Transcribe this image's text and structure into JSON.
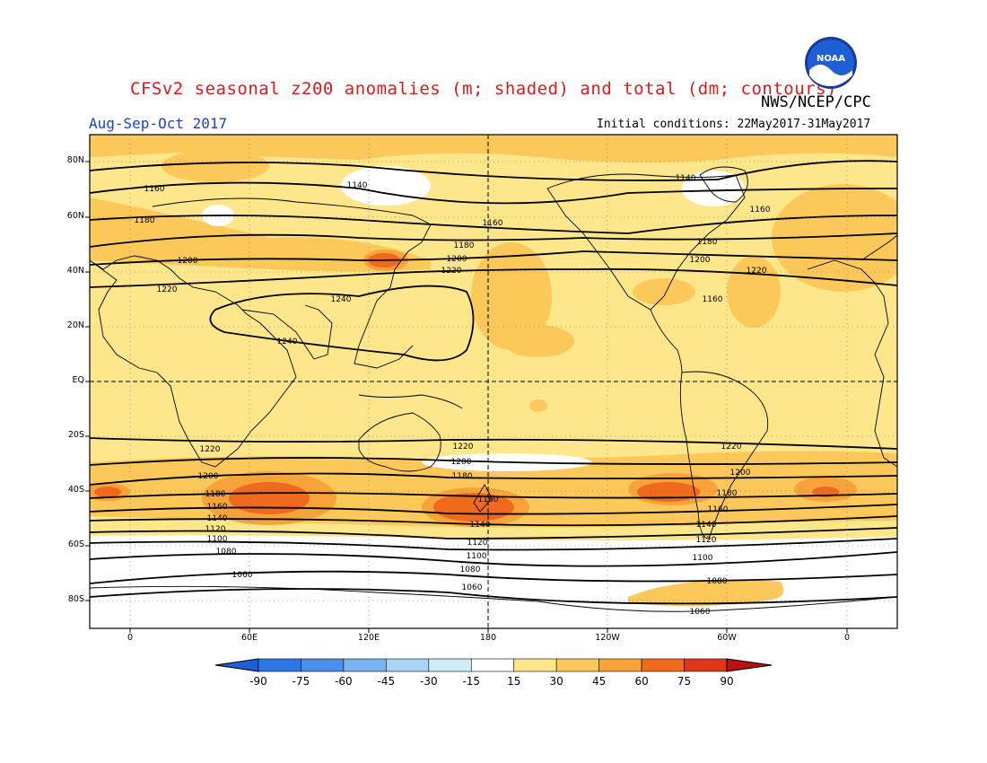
{
  "header": {
    "title": "CFSv2 seasonal z200 anomalies (m; shaded) and total (dm; contours)",
    "agency": "NWS/NCEP/CPC",
    "season": "Aug-Sep-Oct 2017",
    "initial_conditions": "Initial conditions: 22May2017-31May2017",
    "logo_text": "NOAA"
  },
  "axes": {
    "lat_labels": [
      "80N",
      "60N",
      "40N",
      "20N",
      "EQ",
      "20S",
      "40S",
      "60S",
      "80S"
    ],
    "lon_labels": [
      "0",
      "60E",
      "120E",
      "180",
      "120W",
      "60W",
      "0"
    ]
  },
  "colorbar": {
    "ticks": [
      "-90",
      "-75",
      "-60",
      "-45",
      "-30",
      "-15",
      "15",
      "30",
      "45",
      "60",
      "75",
      "90"
    ],
    "colors": [
      "#1e5fd8",
      "#2b78e4",
      "#4a90e8",
      "#78b4f0",
      "#a8d4f5",
      "#cdeef6",
      "#ffffff",
      "#fee68a",
      "#fdc85a",
      "#f7a33a",
      "#ef6a1c",
      "#e2361a",
      "#b91212"
    ]
  },
  "contour_labels": [
    "1140",
    "1160",
    "1180",
    "1200",
    "1220",
    "1240",
    "1240",
    "1140",
    "1160",
    "1180",
    "1200",
    "1220",
    "1160",
    "1180",
    "1200",
    "1220",
    "1160",
    "1220",
    "1200",
    "1180",
    "1160",
    "1140",
    "1120",
    "1100",
    "1080",
    "1060",
    "1220",
    "1200",
    "1180",
    "1160",
    "1140",
    "1120",
    "1100",
    "1080",
    "1060",
    "1220",
    "1200",
    "1180",
    "1160",
    "1140",
    "1120",
    "1100",
    "1080",
    "1060"
  ]
}
